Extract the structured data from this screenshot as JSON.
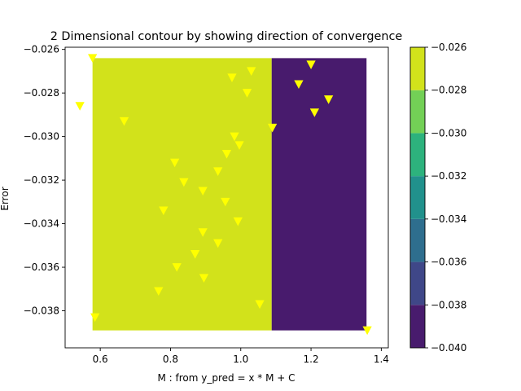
{
  "chart_data": {
    "type": "contour",
    "title": "2 Dimensional contour by showing direction of convergence",
    "xlabel": "M : from y_pred = x * M + C",
    "ylabel": "Error",
    "xlim": [
      0.5,
      1.42
    ],
    "ylim": [
      -0.0397,
      -0.0259
    ],
    "x_ticks": [
      {
        "value": 0.6,
        "label": "0.6"
      },
      {
        "value": 0.8,
        "label": "0.8"
      },
      {
        "value": 1.0,
        "label": "1.0"
      },
      {
        "value": 1.2,
        "label": "1.2"
      },
      {
        "value": 1.4,
        "label": "1.4"
      }
    ],
    "y_ticks": [
      {
        "value": -0.038,
        "label": "−0.038"
      },
      {
        "value": -0.036,
        "label": "−0.036"
      },
      {
        "value": -0.034,
        "label": "−0.034"
      },
      {
        "value": -0.032,
        "label": "−0.032"
      },
      {
        "value": -0.03,
        "label": "−0.030"
      },
      {
        "value": -0.028,
        "label": "−0.028"
      },
      {
        "value": -0.026,
        "label": "−0.026"
      }
    ],
    "regions": [
      {
        "x0": 0.578,
        "x1": 1.088,
        "y0": -0.0389,
        "y1": -0.0264,
        "level": -0.027,
        "color": "#d2e21b"
      },
      {
        "x0": 1.088,
        "x1": 1.358,
        "y0": -0.0389,
        "y1": -0.0264,
        "level": -0.039,
        "color": "#481b6d"
      }
    ],
    "colorbar": {
      "levels": [
        -0.04,
        -0.038,
        -0.036,
        -0.034,
        -0.032,
        -0.03,
        -0.028,
        -0.026
      ],
      "labels": [
        "−0.040",
        "−0.038",
        "−0.036",
        "−0.034",
        "−0.032",
        "−0.030",
        "−0.028",
        "−0.026"
      ],
      "colors": [
        "#481b6d",
        "#3f4788",
        "#2e6e8e",
        "#21918c",
        "#2db27d",
        "#73d056",
        "#d2e21b"
      ]
    },
    "markers": {
      "shape": "triangle-down",
      "color": "#ffff00",
      "points": [
        {
          "x": 0.578,
          "y": -0.0264
        },
        {
          "x": 0.542,
          "y": -0.0286
        },
        {
          "x": 0.668,
          "y": -0.0293
        },
        {
          "x": 0.585,
          "y": -0.0383
        },
        {
          "x": 0.975,
          "y": -0.0273
        },
        {
          "x": 1.03,
          "y": -0.027
        },
        {
          "x": 1.018,
          "y": -0.028
        },
        {
          "x": 0.982,
          "y": -0.03
        },
        {
          "x": 0.996,
          "y": -0.0304
        },
        {
          "x": 0.96,
          "y": -0.0308
        },
        {
          "x": 0.812,
          "y": -0.0312
        },
        {
          "x": 0.935,
          "y": -0.0316
        },
        {
          "x": 0.838,
          "y": -0.0321
        },
        {
          "x": 0.892,
          "y": -0.0325
        },
        {
          "x": 0.956,
          "y": -0.033
        },
        {
          "x": 0.78,
          "y": -0.0334
        },
        {
          "x": 0.992,
          "y": -0.0339
        },
        {
          "x": 0.892,
          "y": -0.0344
        },
        {
          "x": 0.935,
          "y": -0.0349
        },
        {
          "x": 0.87,
          "y": -0.0354
        },
        {
          "x": 0.818,
          "y": -0.036
        },
        {
          "x": 0.895,
          "y": -0.0365
        },
        {
          "x": 0.766,
          "y": -0.0371
        },
        {
          "x": 1.054,
          "y": -0.0377
        },
        {
          "x": 1.09,
          "y": -0.0296
        },
        {
          "x": 1.165,
          "y": -0.0276
        },
        {
          "x": 1.2,
          "y": -0.0267
        },
        {
          "x": 1.25,
          "y": -0.0283
        },
        {
          "x": 1.21,
          "y": -0.0289
        },
        {
          "x": 1.36,
          "y": -0.0389
        }
      ]
    }
  }
}
